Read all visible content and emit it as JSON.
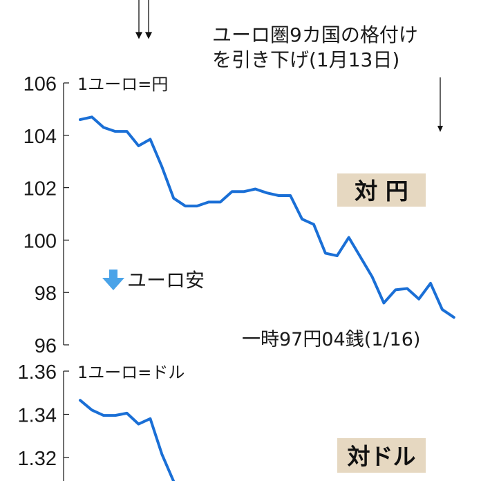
{
  "chart_data": [
    {
      "type": "line",
      "title": "対 円",
      "unit_label": "1ユーロ=円",
      "ylim": [
        96,
        106
      ],
      "yticks": [
        "106",
        "104",
        "102",
        "100",
        "98",
        "96"
      ],
      "grid": false,
      "legend": "none",
      "series": [
        {
          "values": [
            104.6,
            104.7,
            104.3,
            104.15,
            104.15,
            103.6,
            103.85,
            102.8,
            101.6,
            101.3,
            101.3,
            101.45,
            101.45,
            101.85,
            101.85,
            101.95,
            101.8,
            101.7,
            101.7,
            100.8,
            100.6,
            99.5,
            99.4,
            100.1,
            99.35,
            98.6,
            97.6,
            98.1,
            98.15,
            97.75,
            98.35,
            97.35,
            97.05
          ],
          "color": "#1a6fd6"
        }
      ],
      "annotations": {
        "low_note": "一時97円04銭(1/16)",
        "euro_weak_label": "ユーロ安",
        "event_note_line1": "ユーロ圏9カ国の格付け",
        "event_note_line2": "を引き下げ(1月13日)"
      }
    },
    {
      "type": "line",
      "title": "対ドル",
      "unit_label": "1ユーロ=ドル",
      "ylim": [
        1.3,
        1.36
      ],
      "yticks": [
        "1.36",
        "1.34",
        "1.32"
      ],
      "grid": false,
      "legend": "none",
      "series": [
        {
          "values": [
            1.3465,
            1.342,
            1.3395,
            1.3395,
            1.3405,
            1.3355,
            1.338,
            1.3215,
            1.309
          ],
          "color": "#1a6fd6"
        }
      ]
    }
  ]
}
